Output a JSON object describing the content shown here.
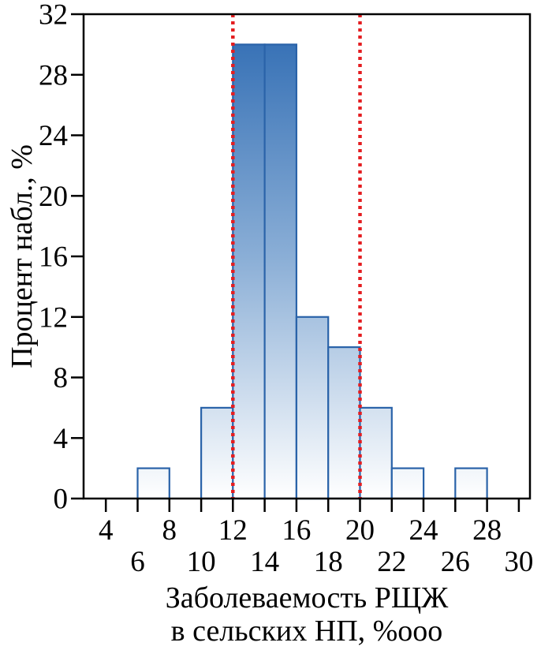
{
  "chart_data": {
    "type": "bar",
    "title": "",
    "ylabel": "Процент набл., %",
    "xlabel_line1": "Заболеваемость РЩЖ",
    "xlabel_line2": "в сельских НП, %ооо",
    "bin_width": 2,
    "bins_start": [
      6,
      8,
      10,
      12,
      14,
      16,
      18,
      20,
      22,
      24,
      26
    ],
    "categories": [
      "6-8",
      "8-10",
      "10-12",
      "12-14",
      "14-16",
      "16-18",
      "18-20",
      "20-22",
      "22-24",
      "24-26",
      "26-28"
    ],
    "values": [
      2,
      0,
      6,
      30,
      30,
      12,
      10,
      6,
      2,
      0,
      2
    ],
    "xlim": [
      2.6,
      30.7
    ],
    "ylim": [
      0,
      32
    ],
    "x_ticks": [
      4,
      6,
      8,
      10,
      12,
      14,
      16,
      18,
      20,
      22,
      24,
      26,
      28,
      30
    ],
    "x_tick_labels_row1": [
      4,
      8,
      12,
      16,
      20,
      24,
      28
    ],
    "x_tick_labels_row2": [
      6,
      10,
      14,
      18,
      22,
      26,
      30
    ],
    "y_ticks": [
      0,
      4,
      8,
      12,
      16,
      20,
      24,
      28,
      32
    ],
    "reference_lines": [
      12,
      20
    ],
    "grid": false,
    "legend": false,
    "colors": {
      "bar_gradient_top": "#2d6ab2",
      "bar_gradient_mid": "#8aaed6",
      "bar_gradient_bottom": "#ffffff",
      "bar_stroke": "#2a63a9",
      "axis": "#000000",
      "reference_line": "#e41d20",
      "text": "#000000"
    }
  }
}
